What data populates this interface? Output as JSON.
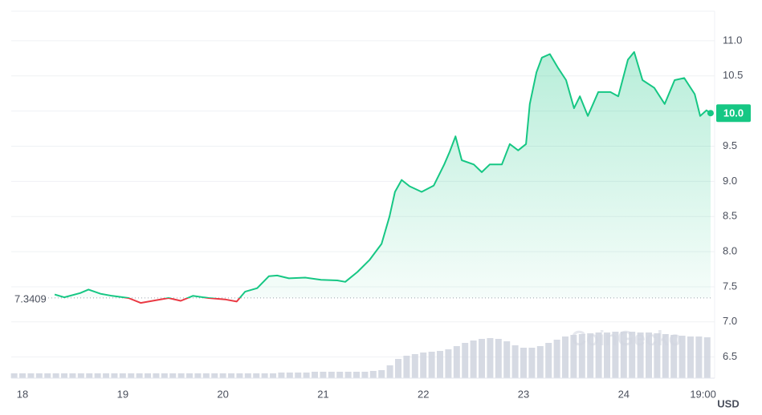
{
  "chart_data": {
    "type": "line",
    "xlim": [
      -2.7,
      165
    ],
    "xticks": [
      {
        "value": 0,
        "label": "18"
      },
      {
        "value": 24,
        "label": "19"
      },
      {
        "value": 48,
        "label": "20"
      },
      {
        "value": 72,
        "label": "21"
      },
      {
        "value": 96,
        "label": "22"
      },
      {
        "value": 120,
        "label": "23"
      },
      {
        "value": 144,
        "label": "24"
      },
      {
        "value": 163,
        "label": "19:00"
      }
    ],
    "ylim": [
      6.2,
      11.42
    ],
    "yticks": [
      6.5,
      {
        "value": 7,
        "label": "7.0"
      },
      7.5,
      {
        "value": 8,
        "label": "8.0"
      },
      8.5,
      {
        "value": 9,
        "label": "9.0"
      },
      9.5,
      {
        "value": 10,
        "label": "10.0"
      },
      10.5,
      {
        "value": 11,
        "label": "11.0"
      }
    ],
    "grid": true,
    "unit_label": "USD",
    "baseline": 7.3409,
    "current_price_label": "10.0",
    "watermark": "CoinGecko",
    "series": [
      {
        "color": "#16c784",
        "color_below": "#ea3943",
        "x": [
          7.7,
          10,
          13.8,
          15.8,
          18.7,
          21.5,
          25.4,
          28.3,
          32.1,
          35,
          37.9,
          40.8,
          44.6,
          48.5,
          51.3,
          53.3,
          56.2,
          59,
          61,
          63.8,
          67.7,
          71.5,
          75.4,
          77.3,
          80.2,
          83.1,
          86,
          87.9,
          89.2,
          90.8,
          92.7,
          95.6,
          98.5,
          101,
          102.3,
          103.7,
          105.2,
          108.1,
          110,
          111.9,
          114.8,
          116.7,
          118.7,
          120.6,
          121.5,
          123.1,
          124.4,
          126.3,
          128.3,
          130.2,
          132.1,
          133.5,
          135.4,
          137.9,
          140.8,
          142.7,
          145,
          146.5,
          148.5,
          151.3,
          153.8,
          156.2,
          158.5,
          161,
          162.3,
          163.8,
          164.8
        ],
        "values": [
          7.39,
          7.35,
          7.41,
          7.46,
          7.4,
          7.37,
          7.34,
          7.27,
          7.31,
          7.34,
          7.3,
          7.37,
          7.34,
          7.32,
          7.29,
          7.43,
          7.48,
          7.65,
          7.66,
          7.62,
          7.63,
          7.6,
          7.59,
          7.57,
          7.71,
          7.88,
          8.11,
          8.5,
          8.85,
          9.02,
          8.93,
          8.85,
          8.94,
          9.24,
          9.42,
          9.64,
          9.3,
          9.24,
          9.13,
          9.24,
          9.24,
          9.53,
          9.44,
          9.53,
          10.1,
          10.55,
          10.76,
          10.81,
          10.61,
          10.44,
          10.04,
          10.21,
          9.93,
          10.27,
          10.27,
          10.21,
          10.73,
          10.84,
          10.44,
          10.33,
          10.1,
          10.44,
          10.47,
          10.24,
          9.93,
          10.01,
          9.97
        ]
      }
    ],
    "volume": {
      "color": "#cfd3de",
      "ylim": [
        0,
        70
      ],
      "x": [
        -2,
        0,
        2,
        4,
        6,
        8,
        10,
        12,
        14,
        16,
        18,
        20,
        22,
        24,
        26,
        28,
        30,
        32,
        34,
        36,
        38,
        40,
        42,
        44,
        46,
        48,
        50,
        52,
        54,
        56,
        58,
        60,
        62,
        64,
        66,
        68,
        70,
        72,
        74,
        76,
        78,
        80,
        82,
        84,
        86,
        88,
        90,
        92,
        94,
        96,
        98,
        100,
        102,
        104,
        106,
        108,
        110,
        112,
        114,
        116,
        118,
        120,
        122,
        124,
        126,
        128,
        130,
        132,
        134,
        136,
        138,
        140,
        142,
        144,
        146,
        148,
        150,
        152,
        154,
        156,
        158,
        160,
        162,
        164
      ],
      "values": [
        6,
        6,
        6,
        6,
        6,
        6,
        6,
        6,
        6,
        6,
        6,
        6,
        6,
        6,
        6,
        6,
        6,
        6,
        6,
        6,
        6,
        6,
        6,
        6,
        6,
        6,
        6,
        6,
        6,
        6,
        6,
        6,
        7,
        7,
        7,
        7,
        8,
        8,
        8,
        8,
        8,
        8,
        8,
        9,
        10,
        16,
        24,
        28,
        30,
        32,
        33,
        34,
        36,
        40,
        44,
        47,
        49,
        50,
        49,
        46,
        41,
        38,
        38,
        40,
        44,
        48,
        52,
        54,
        55,
        56,
        57,
        57,
        58,
        58,
        58,
        57,
        57,
        56,
        55,
        54,
        53,
        52,
        52,
        51
      ]
    }
  }
}
